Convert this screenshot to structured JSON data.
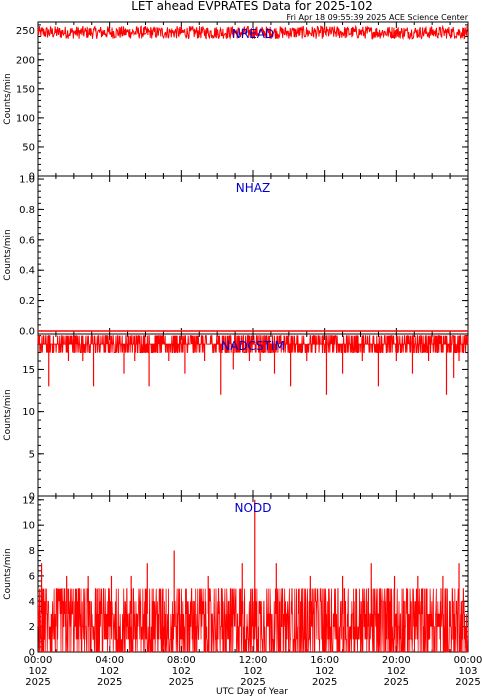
{
  "title": "LET ahead EVPRATES Data for 2025-102",
  "timestamp": "Fri Apr 18 09:55:39 2025 ACE Science Center",
  "x_axis_title": "UTC Day of Year",
  "x_ticks": [
    {
      "time": "00:00",
      "doy": "102",
      "year": "2025"
    },
    {
      "time": "04:00",
      "doy": "102",
      "year": "2025"
    },
    {
      "time": "08:00",
      "doy": "102",
      "year": "2025"
    },
    {
      "time": "12:00",
      "doy": "102",
      "year": "2025"
    },
    {
      "time": "16:00",
      "doy": "102",
      "year": "2025"
    },
    {
      "time": "20:00",
      "doy": "102",
      "year": "2025"
    },
    {
      "time": "00:00",
      "doy": "103",
      "year": "2025"
    }
  ],
  "colors": {
    "series": "#ff0000",
    "label": "#0000cc",
    "axes": "#000000"
  },
  "chart_data": [
    {
      "type": "line",
      "label": "NREAD",
      "ylabel": "Counts/min",
      "ylim": [
        0,
        265
      ],
      "yticks": [
        "0",
        "50",
        "100",
        "150",
        "200",
        "250"
      ],
      "ytick_values": [
        0,
        50,
        100,
        150,
        200,
        250
      ],
      "xlim": [
        0,
        24
      ],
      "x_unit": "UTC hours",
      "typical": {
        "min": 236,
        "max": 258,
        "mean": 247
      },
      "x": [
        0,
        2,
        4,
        6,
        8,
        10,
        12,
        14,
        16,
        18,
        20,
        22,
        24
      ],
      "values": [
        251,
        248,
        246,
        245,
        247,
        244,
        246,
        245,
        248,
        247,
        249,
        250,
        246
      ]
    },
    {
      "type": "line",
      "label": "NHAZ",
      "ylabel": "Counts/min",
      "ylim": [
        -0.02,
        1.02
      ],
      "yticks": [
        "0.0",
        "0.2",
        "0.4",
        "0.6",
        "0.8",
        "1.0"
      ],
      "ytick_values": [
        0.0,
        0.2,
        0.4,
        0.6,
        0.8,
        1.0
      ],
      "xlim": [
        0,
        24
      ],
      "x": [
        0,
        24
      ],
      "values": [
        0,
        0
      ]
    },
    {
      "type": "line",
      "label": "NADCSTIM",
      "ylabel": "Counts/min",
      "ylim": [
        0,
        19.2
      ],
      "yticks": [
        "0",
        "5",
        "10",
        "15"
      ],
      "ytick_values": [
        0,
        5,
        10,
        15
      ],
      "xlim": [
        0,
        24
      ],
      "typical": {
        "min": 17,
        "max": 19,
        "mean": 18
      },
      "dips": [
        {
          "x": 0.6,
          "y": 13
        },
        {
          "x": 1.7,
          "y": 16
        },
        {
          "x": 2.5,
          "y": 16
        },
        {
          "x": 3.1,
          "y": 13
        },
        {
          "x": 4.8,
          "y": 14.5
        },
        {
          "x": 5.4,
          "y": 16
        },
        {
          "x": 6.2,
          "y": 13
        },
        {
          "x": 7.3,
          "y": 16
        },
        {
          "x": 8.2,
          "y": 14.5
        },
        {
          "x": 9.3,
          "y": 16
        },
        {
          "x": 10.2,
          "y": 12
        },
        {
          "x": 10.9,
          "y": 15
        },
        {
          "x": 11.8,
          "y": 16
        },
        {
          "x": 12.4,
          "y": 16
        },
        {
          "x": 13.2,
          "y": 14.5
        },
        {
          "x": 14.1,
          "y": 13
        },
        {
          "x": 15.0,
          "y": 16
        },
        {
          "x": 16.1,
          "y": 12
        },
        {
          "x": 17.0,
          "y": 14.5
        },
        {
          "x": 18.1,
          "y": 16
        },
        {
          "x": 19.0,
          "y": 13
        },
        {
          "x": 20.0,
          "y": 16
        },
        {
          "x": 20.9,
          "y": 14.5
        },
        {
          "x": 21.8,
          "y": 16
        },
        {
          "x": 22.8,
          "y": 12
        },
        {
          "x": 23.2,
          "y": 14
        },
        {
          "x": 23.5,
          "y": 16
        }
      ]
    },
    {
      "type": "line",
      "label": "NODD",
      "ylabel": "Counts/min",
      "ylim": [
        0,
        12.3
      ],
      "yticks": [
        "0",
        "2",
        "4",
        "6",
        "8",
        "10",
        "12"
      ],
      "ytick_values": [
        0,
        2,
        4,
        6,
        8,
        10,
        12
      ],
      "xlim": [
        0,
        24
      ],
      "typical": {
        "min": 0,
        "max": 6,
        "mean": 3
      },
      "spikes": [
        {
          "x": 0.2,
          "y": 7
        },
        {
          "x": 1.6,
          "y": 6
        },
        {
          "x": 2.8,
          "y": 6
        },
        {
          "x": 4.1,
          "y": 6
        },
        {
          "x": 5.2,
          "y": 6
        },
        {
          "x": 6.1,
          "y": 7
        },
        {
          "x": 7.6,
          "y": 8
        },
        {
          "x": 9.5,
          "y": 6
        },
        {
          "x": 11.4,
          "y": 7
        },
        {
          "x": 12.1,
          "y": 12
        },
        {
          "x": 13.3,
          "y": 7
        },
        {
          "x": 15.2,
          "y": 6
        },
        {
          "x": 17.0,
          "y": 6
        },
        {
          "x": 18.6,
          "y": 7
        },
        {
          "x": 19.9,
          "y": 6
        },
        {
          "x": 21.2,
          "y": 6
        },
        {
          "x": 22.6,
          "y": 6
        },
        {
          "x": 23.5,
          "y": 7
        }
      ]
    }
  ]
}
